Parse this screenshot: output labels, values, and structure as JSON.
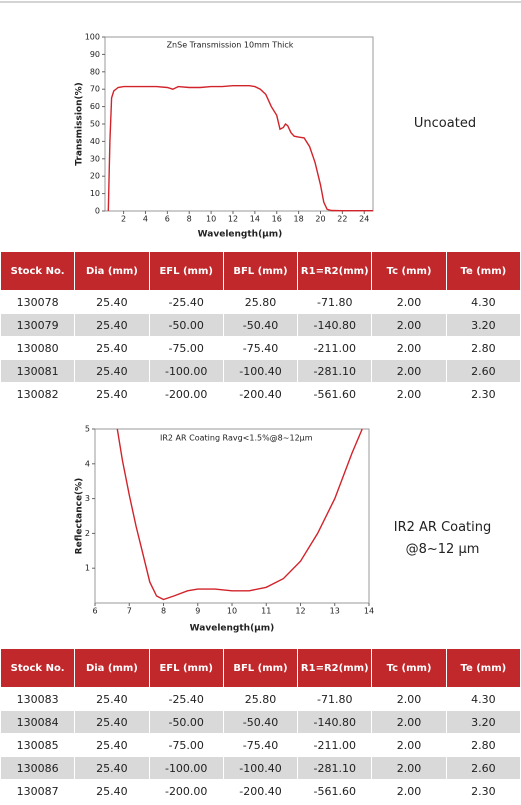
{
  "chart_data": [
    {
      "type": "line",
      "title": "ZnSe Transmission 10mm Thick",
      "x_label": "Wavelength(μm)",
      "y_label": "Transmission(%)",
      "xlim": [
        0.3,
        24.8
      ],
      "ylim": [
        0,
        100
      ],
      "xticks": [
        2,
        4,
        6,
        8,
        10,
        12,
        14,
        16,
        18,
        20,
        22,
        24
      ],
      "yticks": [
        0,
        10,
        20,
        30,
        40,
        50,
        60,
        70,
        80,
        90,
        100
      ],
      "series": [
        {
          "name": null,
          "color": "#d2232a",
          "x": [
            0.6,
            0.75,
            0.9,
            1.1,
            1.5,
            2,
            3,
            4,
            5,
            6,
            6.5,
            7,
            8,
            9,
            10,
            11,
            12,
            13,
            13.5,
            14,
            14.5,
            15,
            15.5,
            16,
            16.3,
            16.6,
            16.8,
            17,
            17.3,
            17.6,
            18,
            18.5,
            19,
            19.5,
            20,
            20.3,
            20.6,
            21,
            22,
            24.8
          ],
          "values": [
            0,
            40,
            65,
            69,
            71,
            71.5,
            71.5,
            71.5,
            71.5,
            71,
            70,
            71.5,
            71,
            71,
            71.5,
            71.5,
            72,
            72,
            72,
            71.5,
            70,
            67,
            60,
            55,
            47,
            48,
            50,
            49,
            45,
            43,
            42.5,
            42,
            37,
            28,
            15,
            5,
            1,
            0.3,
            0.2,
            0.2
          ]
        }
      ]
    },
    {
      "type": "line",
      "title": "IR2 AR Coating Ravg<1.5%@8~12μm",
      "x_label": "Wavelength(μm)",
      "y_label": "Reflectance(%)",
      "xlim": [
        6,
        14
      ],
      "ylim": [
        0,
        5
      ],
      "xticks": [
        6,
        7,
        8,
        9,
        10,
        11,
        12,
        13,
        14
      ],
      "yticks": [
        1,
        2,
        3,
        4,
        5
      ],
      "series": [
        {
          "name": null,
          "color": "#d2232a",
          "x": [
            6.65,
            6.8,
            7,
            7.2,
            7.4,
            7.6,
            7.8,
            8,
            8.3,
            8.7,
            9,
            9.5,
            10,
            10.5,
            11,
            11.5,
            12,
            12.5,
            13,
            13.5,
            13.8
          ],
          "values": [
            5,
            4.1,
            3.1,
            2.2,
            1.4,
            0.6,
            0.2,
            0.1,
            0.2,
            0.35,
            0.4,
            0.4,
            0.35,
            0.35,
            0.45,
            0.7,
            1.2,
            2.0,
            3.0,
            4.3,
            5
          ]
        }
      ]
    }
  ],
  "side_labels": [
    "Uncoated",
    "IR2 AR Coating @8~12 μm"
  ],
  "tables": [
    {
      "header": [
        "Stock No.",
        "Dia (mm)",
        "EFL (mm)",
        "BFL (mm)",
        "R1=R2(mm)",
        "Tc (mm)",
        "Te (mm)"
      ],
      "rows": [
        [
          "130078",
          "25.40",
          "-25.40",
          "25.80",
          "-71.80",
          "2.00",
          "4.30"
        ],
        [
          "130079",
          "25.40",
          "-50.00",
          "-50.40",
          "-140.80",
          "2.00",
          "3.20"
        ],
        [
          "130080",
          "25.40",
          "-75.00",
          "-75.40",
          "-211.00",
          "2.00",
          "2.80"
        ],
        [
          "130081",
          "25.40",
          "-100.00",
          "-100.40",
          "-281.10",
          "2.00",
          "2.60"
        ],
        [
          "130082",
          "25.40",
          "-200.00",
          "-200.40",
          "-561.60",
          "2.00",
          "2.30"
        ]
      ]
    },
    {
      "header": [
        "Stock No.",
        "Dia (mm)",
        "EFL (mm)",
        "BFL (mm)",
        "R1=R2(mm)",
        "Tc (mm)",
        "Te (mm)"
      ],
      "rows": [
        [
          "130083",
          "25.40",
          "-25.40",
          "25.80",
          "-71.80",
          "2.00",
          "4.30"
        ],
        [
          "130084",
          "25.40",
          "-50.00",
          "-50.40",
          "-140.80",
          "2.00",
          "3.20"
        ],
        [
          "130085",
          "25.40",
          "-75.00",
          "-75.40",
          "-211.00",
          "2.00",
          "2.80"
        ],
        [
          "130086",
          "25.40",
          "-100.00",
          "-100.40",
          "-281.10",
          "2.00",
          "2.60"
        ],
        [
          "130087",
          "25.40",
          "-200.00",
          "-200.40",
          "-561.60",
          "2.00",
          "2.30"
        ]
      ]
    }
  ]
}
